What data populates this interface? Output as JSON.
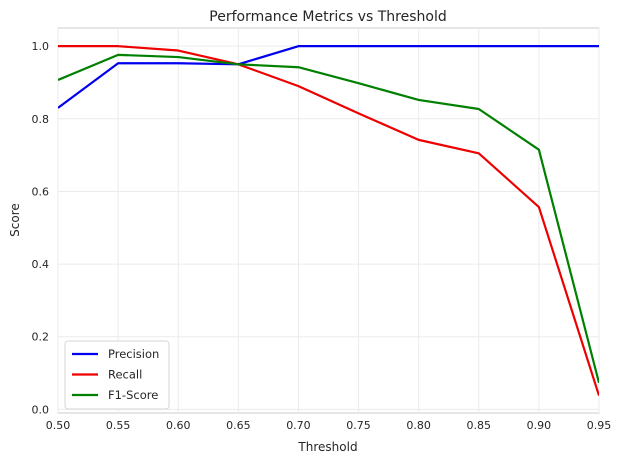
{
  "chart_data": {
    "type": "line",
    "title": "Performance Metrics vs Threshold",
    "xlabel": "Threshold",
    "ylabel": "Score",
    "xlim": [
      0.5,
      0.95
    ],
    "ylim": [
      -0.01,
      1.05
    ],
    "x_ticks": [
      "0.50",
      "0.55",
      "0.60",
      "0.65",
      "0.70",
      "0.75",
      "0.80",
      "0.85",
      "0.90",
      "0.95"
    ],
    "y_ticks": [
      "0.0",
      "0.2",
      "0.4",
      "0.6",
      "0.8",
      "1.0"
    ],
    "grid": true,
    "legend_position": "lower-left",
    "x": [
      0.5,
      0.55,
      0.6,
      0.65,
      0.7,
      0.75,
      0.8,
      0.85,
      0.9,
      0.95
    ],
    "series": [
      {
        "name": "Precision",
        "color": "#0000ee",
        "values": [
          0.83,
          0.953,
          0.953,
          0.95,
          1.0,
          1.0,
          1.0,
          1.0,
          1.0,
          1.0
        ]
      },
      {
        "name": "Recall",
        "color": "#ee0000",
        "values": [
          1.0,
          1.0,
          0.988,
          0.95,
          0.89,
          0.815,
          0.742,
          0.705,
          0.557,
          0.038
        ]
      },
      {
        "name": "F1-Score",
        "color": "#008000",
        "values": [
          0.907,
          0.976,
          0.97,
          0.95,
          0.942,
          0.898,
          0.852,
          0.827,
          0.715,
          0.073
        ]
      }
    ]
  }
}
